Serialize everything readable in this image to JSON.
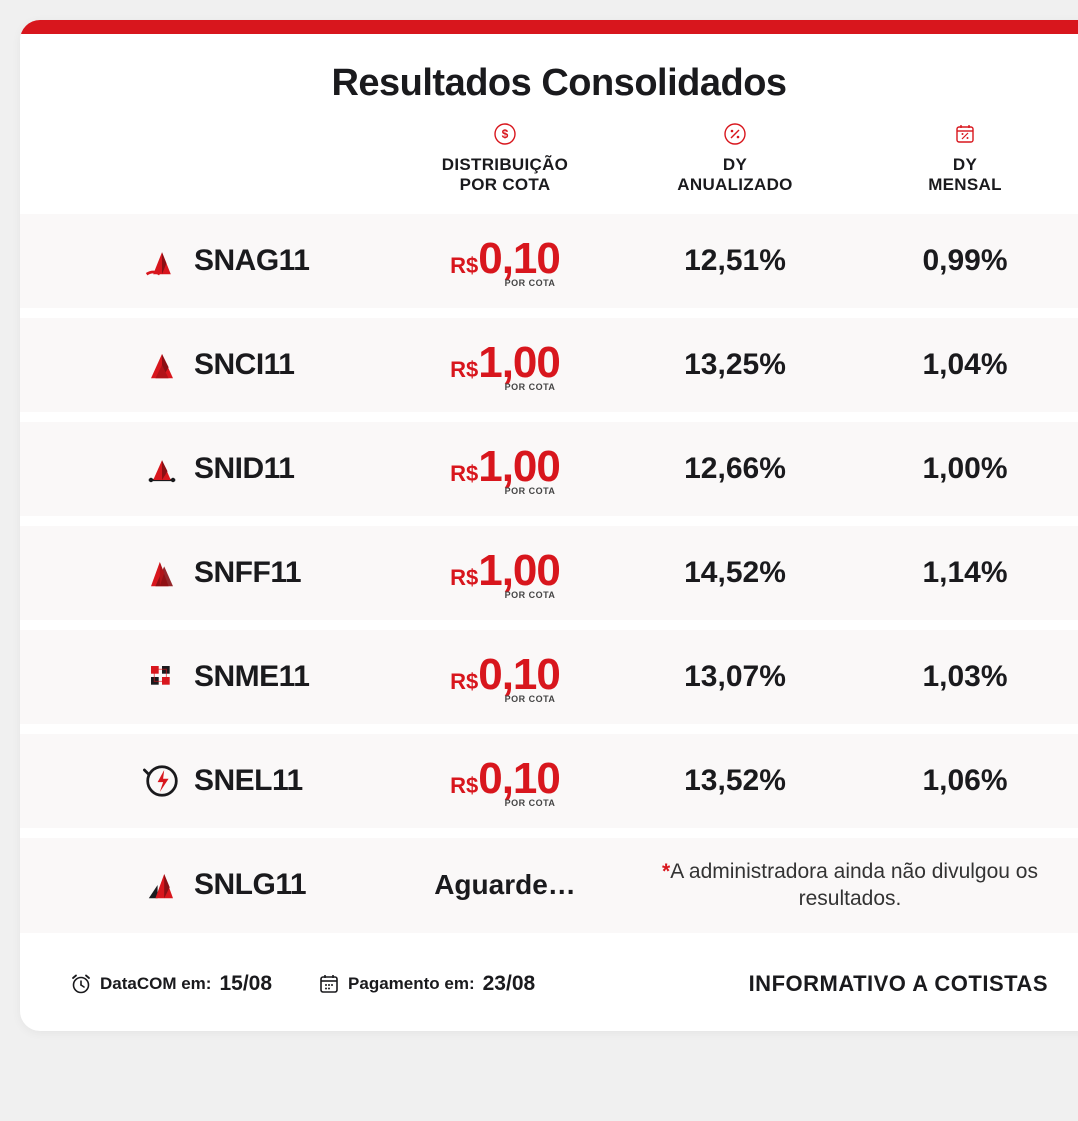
{
  "title": "Resultados Consolidados",
  "colors": {
    "accent": "#d8161d",
    "text": "#1a1a1d",
    "row_bg": "#faf8f8",
    "card_bg": "#ffffff"
  },
  "columns": [
    {
      "label": "DISTRIBUIÇÃO\nPOR COTA",
      "icon": "dollar-circle"
    },
    {
      "label": "DY\nANUALIZADO",
      "icon": "percent-circle"
    },
    {
      "label": "DY\nMENSAL",
      "icon": "calendar-percent"
    }
  ],
  "rows": [
    {
      "ticker": "SNAG11",
      "icon": "snag",
      "distribution": {
        "currency": "R$",
        "value": "0,10",
        "sublabel": "POR COTA"
      },
      "dy_annual": "12,51%",
      "dy_monthly": "0,99%"
    },
    {
      "ticker": "SNCI11",
      "icon": "snci",
      "distribution": {
        "currency": "R$",
        "value": "1,00",
        "sublabel": "POR COTA"
      },
      "dy_annual": "13,25%",
      "dy_monthly": "1,04%"
    },
    {
      "ticker": "SNID11",
      "icon": "snid",
      "distribution": {
        "currency": "R$",
        "value": "1,00",
        "sublabel": "POR COTA"
      },
      "dy_annual": "12,66%",
      "dy_monthly": "1,00%"
    },
    {
      "ticker": "SNFF11",
      "icon": "snff",
      "distribution": {
        "currency": "R$",
        "value": "1,00",
        "sublabel": "POR COTA"
      },
      "dy_annual": "14,52%",
      "dy_monthly": "1,14%"
    },
    {
      "ticker": "SNME11",
      "icon": "snme",
      "distribution": {
        "currency": "R$",
        "value": "0,10",
        "sublabel": "POR COTA"
      },
      "dy_annual": "13,07%",
      "dy_monthly": "1,03%"
    },
    {
      "ticker": "SNEL11",
      "icon": "snel",
      "distribution": {
        "currency": "R$",
        "value": "0,10",
        "sublabel": "POR COTA"
      },
      "dy_annual": "13,52%",
      "dy_monthly": "1,06%"
    },
    {
      "ticker": "SNLG11",
      "icon": "snlg",
      "pending": true,
      "wait_label": "Aguarde…",
      "note_star": "*",
      "note": "A administradora ainda não divulgou os resultados."
    }
  ],
  "footer": {
    "datacom_label": "DataCOM em:",
    "datacom_value": "15/08",
    "payment_label": "Pagamento em:",
    "payment_value": "23/08",
    "right_label": "INFORMATIVO A COTISTAS"
  }
}
